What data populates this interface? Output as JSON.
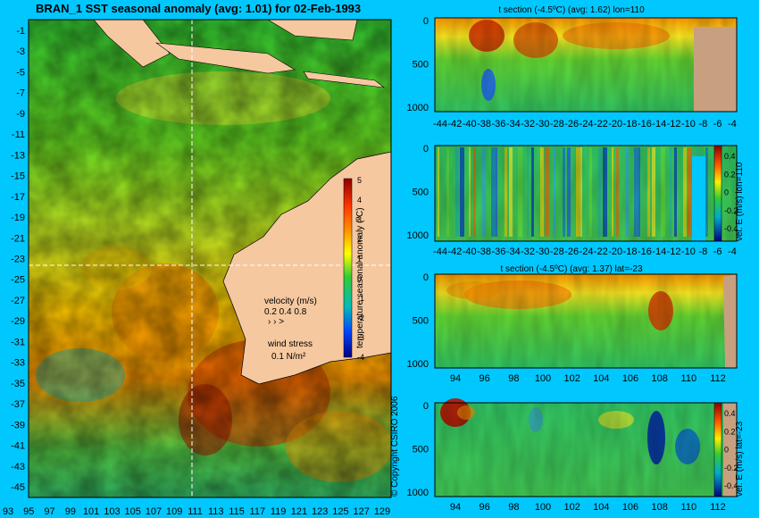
{
  "map": {
    "title": "BRAN_1 SST seasonal anomaly (avg: 1.01) for 02-Feb-1993",
    "lat_ticks": [
      "-1",
      "-3",
      "-5",
      "-7",
      "-9",
      "-11",
      "-13",
      "-15",
      "-17",
      "-19",
      "-21",
      "-23",
      "-25",
      "-27",
      "-29",
      "-31",
      "-33",
      "-35",
      "-37",
      "-39",
      "-41",
      "-43",
      "-45"
    ],
    "lon_ticks": [
      "93",
      "95",
      "97",
      "99",
      "101",
      "103",
      "105",
      "107",
      "109",
      "111",
      "113",
      "115",
      "117",
      "119",
      "121",
      "123",
      "125",
      "127",
      "129"
    ],
    "lon_range": [
      92,
      130
    ],
    "lat_range": [
      -45,
      0
    ],
    "section_lon": 110,
    "section_lat": -23,
    "colorbar": {
      "label": "temperature seasonal anomaly (ºC)",
      "ticks": [
        "5",
        "4",
        "3",
        "2",
        "1",
        "0",
        "-1",
        "-2",
        "-3",
        "-4"
      ]
    },
    "legend": {
      "velocity_label": "velocity (m/s)",
      "velocity_values": "0.2 0.4 0.8",
      "wind_label": "wind stress",
      "wind_value": "0.1 N/m²"
    },
    "copyright": "© Copyright CSIRO 2006"
  },
  "panels": [
    {
      "title": "t section (-4.5ºC) (avg: 1.62) lon=110",
      "y_ticks": [
        "0",
        "500",
        "1000"
      ],
      "x_ticks": [
        "-44",
        "-42",
        "-40",
        "-38",
        "-36",
        "-34",
        "-32",
        "-30",
        "-28",
        "-26",
        "-24",
        "-22",
        "-20",
        "-18",
        "-16",
        "-14",
        "-12",
        "-10",
        "-8",
        "-6",
        "-4"
      ]
    },
    {
      "title": "",
      "y_ticks": [
        "0",
        "500",
        "1000"
      ],
      "x_ticks": [
        "-44",
        "-42",
        "-40",
        "-38",
        "-36",
        "-34",
        "-32",
        "-30",
        "-28",
        "-26",
        "-24",
        "-22",
        "-20",
        "-18",
        "-16",
        "-14",
        "-12",
        "-10",
        "-8",
        "-6",
        "-4"
      ],
      "colorbar_label": "vel. E (m/s) lon=110",
      "colorbar_ticks": [
        "0.4",
        "0.2",
        "0",
        "-0.2",
        "-0.4"
      ]
    },
    {
      "title": "t section (-4.5ºC) (avg: 1.37) lat=-23",
      "y_ticks": [
        "0",
        "500",
        "1000"
      ],
      "x_ticks": [
        "94",
        "96",
        "98",
        "100",
        "102",
        "104",
        "106",
        "108",
        "110",
        "112"
      ]
    },
    {
      "title": "",
      "y_ticks": [
        "0",
        "500",
        "1000"
      ],
      "x_ticks": [
        "94",
        "96",
        "98",
        "100",
        "102",
        "104",
        "106",
        "108",
        "110",
        "112"
      ],
      "colorbar_label": "vel. E (m/s) lat=-23",
      "colorbar_ticks": [
        "0.4",
        "0.2",
        "0",
        "-0.2",
        "-0.4"
      ]
    }
  ]
}
